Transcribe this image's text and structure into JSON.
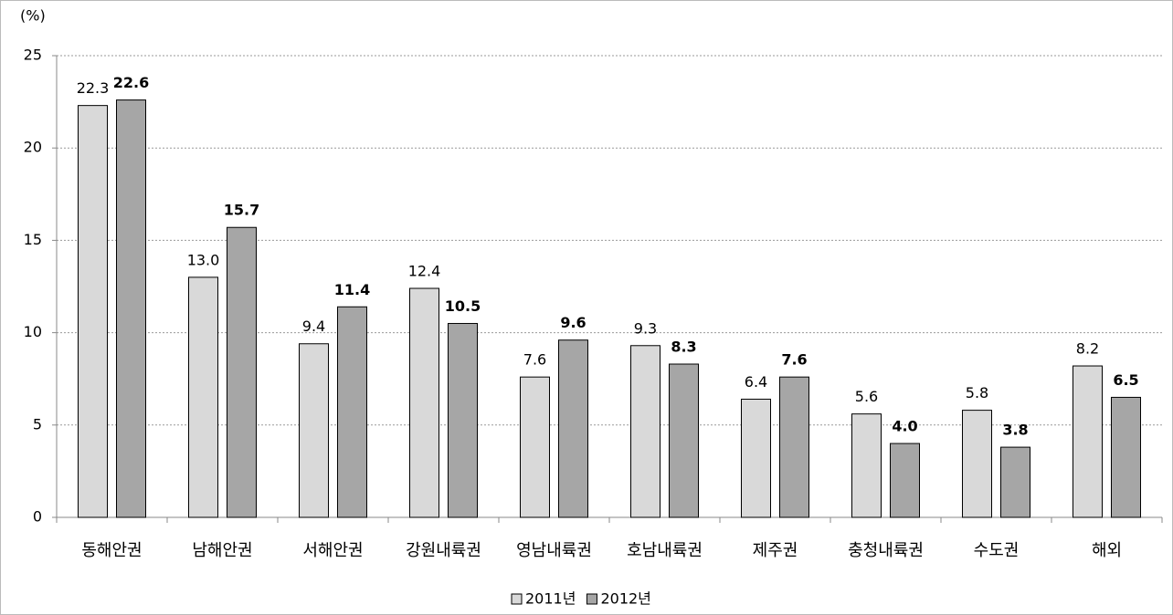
{
  "chart_data": {
    "type": "bar",
    "y_label": "(%)",
    "categories": [
      "동해안권",
      "남해안권",
      "서해안권",
      "강원내륙권",
      "영남내륙권",
      "호남내륙권",
      "제주권",
      "충청내륙권",
      "수도권",
      "해외"
    ],
    "series": [
      {
        "name": "2011년",
        "color": "#d9d9d9",
        "values": [
          22.3,
          13.0,
          9.4,
          12.4,
          7.6,
          9.3,
          6.4,
          5.6,
          5.8,
          8.2
        ],
        "value_labels": [
          "22.3",
          "13.0",
          "9.4",
          "12.4",
          "7.6",
          "9.3",
          "6.4",
          "5.6",
          "5.8",
          "8.2"
        ]
      },
      {
        "name": "2012년",
        "color": "#a6a6a6",
        "values": [
          22.6,
          15.7,
          11.4,
          10.5,
          9.6,
          8.3,
          7.6,
          4.0,
          3.8,
          6.5
        ],
        "value_labels": [
          "22.6",
          "15.7",
          "11.4",
          "10.5",
          "9.6",
          "8.3",
          "7.6",
          "4.0",
          "3.8",
          "6.5"
        ]
      }
    ],
    "ylim": [
      0,
      25
    ],
    "yticks": [
      0,
      5,
      10,
      15,
      20,
      25
    ],
    "grid": true,
    "legend": "bottom"
  }
}
